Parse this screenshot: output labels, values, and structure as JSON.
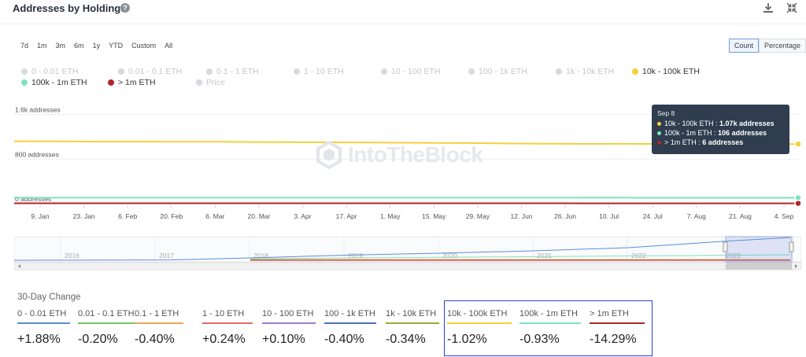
{
  "header": {
    "title": "Addresses by Holdings",
    "help_icon": "?",
    "download_icon": "download-icon",
    "collapse_icon": "collapse-icon"
  },
  "range_buttons": [
    "7d",
    "1m",
    "3m",
    "6m",
    "1y",
    "YTD",
    "Custom",
    "All"
  ],
  "mode_buttons": {
    "count": "Count",
    "percentage": "Percentage",
    "active": "Count"
  },
  "legend": [
    {
      "label": "0 - 0.01 ETH",
      "active": false,
      "color": "#d7d9de"
    },
    {
      "label": "0.01 - 0.1 ETH",
      "active": false,
      "color": "#d7d9de"
    },
    {
      "label": "0.1 - 1 ETH",
      "active": false,
      "color": "#d7d9de"
    },
    {
      "label": "1 - 10 ETH",
      "active": false,
      "color": "#d7d9de"
    },
    {
      "label": "10 - 100 ETH",
      "active": false,
      "color": "#d7d9de"
    },
    {
      "label": "100 - 1k ETH",
      "active": false,
      "color": "#d7d9de"
    },
    {
      "label": "1k - 10k ETH",
      "active": false,
      "color": "#d7d9de"
    },
    {
      "label": "10k - 100k ETH",
      "active": true,
      "color": "#f5cf3b"
    },
    {
      "label": "100k - 1m ETH",
      "active": true,
      "color": "#7ee3bf"
    },
    {
      "label": "> 1m ETH",
      "active": true,
      "color": "#b2262a"
    },
    {
      "label": "Price",
      "active": false,
      "color": "#d7d9de"
    }
  ],
  "chart_data": {
    "type": "line",
    "title": "Addresses by Holdings",
    "ylabel": "addresses",
    "y_ticks": [
      0,
      800,
      1600
    ],
    "y_tick_labels": [
      "0 addresses",
      "800 addresses",
      "1.6k addresses"
    ],
    "ylim": [
      0,
      1750
    ],
    "x_ticks": [
      "9. Jan",
      "23. Jan",
      "6. Feb",
      "20. Feb",
      "6. Mar",
      "20. Mar",
      "3. Apr",
      "17. Apr",
      "1. May",
      "15. May",
      "29. May",
      "12. Jun",
      "26. Jun",
      "10. Jul",
      "24. Jul",
      "7. Aug",
      "21. Aug",
      "4. Sep"
    ],
    "grid": true,
    "series": [
      {
        "name": "10k - 100k ETH",
        "color": "#f5cf3b",
        "values": [
          1120,
          1118,
          1116,
          1114,
          1114,
          1112,
          1110,
          1110,
          1106,
          1104,
          1102,
          1100,
          1098,
          1094,
          1090,
          1088,
          1082,
          1078,
          1076,
          1072,
          1074,
          1072,
          1070,
          1070,
          1070,
          1070,
          1070
        ]
      },
      {
        "name": "100k - 1m ETH",
        "color": "#7ee3bf",
        "values": [
          107,
          107,
          107,
          107,
          107,
          107,
          107,
          107,
          107,
          107,
          107,
          107,
          107,
          107,
          107,
          107,
          107,
          107,
          107,
          107,
          107,
          106,
          106,
          106,
          106,
          106,
          106
        ]
      },
      {
        "name": "> 1m ETH",
        "color": "#b2262a",
        "values": [
          7,
          7,
          7,
          7,
          7,
          7,
          7,
          7,
          7,
          7,
          7,
          7,
          7,
          7,
          7,
          7,
          7,
          7,
          7,
          6,
          6,
          6,
          6,
          6,
          6,
          6,
          6
        ]
      }
    ],
    "navigator_years": [
      "2016",
      "2017",
      "2018",
      "2019",
      "2020",
      "2021",
      "2022",
      "2023"
    ],
    "tooltip": {
      "date": "Sep 8",
      "rows": [
        {
          "series": "10k - 100k ETH",
          "value": "1.07k addresses",
          "color": "#f5cf3b"
        },
        {
          "series": "100k - 1m ETH",
          "value": "106 addresses",
          "color": "#7ee3bf"
        },
        {
          "series": "> 1m ETH",
          "value": "6 addresses",
          "color": "#b2262a"
        }
      ]
    }
  },
  "watermark": "IntoTheBlock",
  "change": {
    "title": "30-Day Change",
    "items": [
      {
        "label": "0 - 0.01 ETH",
        "value": "+1.88%",
        "color": "#5b8ed8"
      },
      {
        "label": "0.01 - 0.1 ETH",
        "value": "-0.20%",
        "color": "#7cc36a"
      },
      {
        "label": "0.1 - 1 ETH",
        "value": "-0.40%",
        "color": "#f0a45a"
      },
      {
        "label": "1 - 10 ETH",
        "value": "+0.24%",
        "color": "#e06a6a"
      },
      {
        "label": "10 - 100 ETH",
        "value": "+0.10%",
        "color": "#9a7fd0"
      },
      {
        "label": "100 - 1k ETH",
        "value": "-0.40%",
        "color": "#4a6fb8"
      },
      {
        "label": "1k - 10k ETH",
        "value": "-0.34%",
        "color": "#9aa93a"
      },
      {
        "label": "10k - 100k ETH",
        "value": "-1.02%",
        "color": "#f5cf3b"
      },
      {
        "label": "100k - 1m ETH",
        "value": "-0.93%",
        "color": "#7ee3bf"
      },
      {
        "label": "> 1m ETH",
        "value": "-14.29%",
        "color": "#b2262a"
      }
    ]
  }
}
